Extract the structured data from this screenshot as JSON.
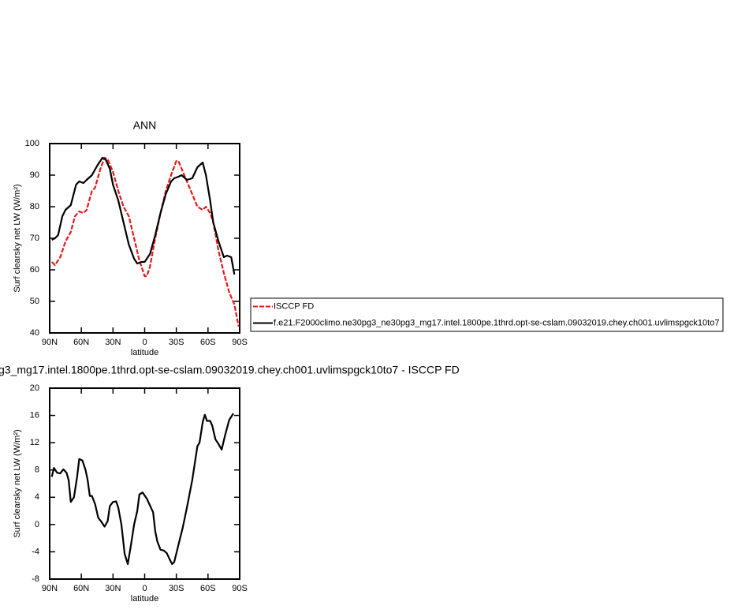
{
  "chart_data": [
    {
      "type": "line",
      "title": "ANN",
      "x_label": "latitude",
      "y_label": "Surf clearsky net LW (W/m²)",
      "xlim": [
        90,
        -90
      ],
      "xticks": [
        {
          "value": 90,
          "label": "90N"
        },
        {
          "value": 60,
          "label": "60N"
        },
        {
          "value": 30,
          "label": "30N"
        },
        0,
        {
          "value": -30,
          "label": "30S"
        },
        {
          "value": -60,
          "label": "60S"
        },
        {
          "value": -90,
          "label": "90S"
        }
      ],
      "ylim": [
        40,
        100
      ],
      "yticks": [
        40,
        50,
        60,
        70,
        80,
        90,
        100
      ],
      "legend": "right",
      "series": [
        {
          "name": "ISCCP FD",
          "color": "#e41a1c",
          "dashed": true,
          "x": [
            88,
            85,
            80,
            75,
            70,
            66,
            62,
            58,
            55,
            50,
            47,
            42,
            38,
            35,
            30,
            25,
            20,
            15,
            10,
            5,
            0,
            -2,
            -5,
            -10,
            -15,
            -20,
            -25,
            -30,
            -32,
            -35,
            -40,
            -45,
            -50,
            -55,
            -58,
            -62,
            -65,
            -70,
            -75,
            -80,
            -85,
            -89
          ],
          "values": [
            62.5,
            61.5,
            64,
            69,
            72,
            77,
            78.5,
            78,
            79,
            85,
            86,
            92,
            95.5,
            95,
            91,
            85,
            80,
            77,
            70,
            63,
            58,
            58,
            61,
            70,
            78,
            85,
            90,
            94.5,
            94.5,
            92,
            88,
            84,
            80,
            79,
            80,
            78,
            75,
            66,
            59,
            53,
            49,
            42
          ]
        },
        {
          "name": "f.e21.F2000climo.ne30pg3_ne30pg3_mg17.intel.1800pe.1thrd.opt-se-cslam.09032019.chey.ch001.uvlimspgck10to7",
          "color": "#000000",
          "dashed": false,
          "x": [
            88,
            85,
            82,
            78,
            75,
            70,
            65,
            62,
            58,
            55,
            50,
            45,
            40,
            37,
            33,
            30,
            25,
            20,
            15,
            10,
            7,
            3,
            0,
            -5,
            -10,
            -15,
            -20,
            -25,
            -28,
            -32,
            -35,
            -40,
            -45,
            -50,
            -55,
            -58,
            -62,
            -65,
            -70,
            -75,
            -78,
            -82,
            -85
          ],
          "values": [
            69.5,
            70,
            71,
            77,
            79,
            80.5,
            87,
            88,
            87.5,
            88.5,
            90,
            93,
            95.5,
            95,
            92,
            87,
            82,
            75,
            68,
            63.5,
            62,
            62.5,
            62.5,
            65,
            71,
            78,
            84,
            88,
            89,
            89.5,
            90,
            88.5,
            89,
            92.5,
            94,
            90,
            82,
            75,
            69,
            64,
            64.5,
            64,
            58.5
          ]
        }
      ]
    },
    {
      "type": "line",
      "title": "g3_mg17.intel.1800pe.1thrd.opt-se-cslam.09032019.chey.ch001.uvlimspgck10to7 - ISCCP FD",
      "x_label": "latitude",
      "y_label": "Surf clearsky net LW (W/m²)",
      "xlim": [
        90,
        -90
      ],
      "xticks": [
        {
          "value": 90,
          "label": "90N"
        },
        {
          "value": 60,
          "label": "60N"
        },
        {
          "value": 30,
          "label": "30N"
        },
        0,
        {
          "value": -30,
          "label": "30S"
        },
        {
          "value": -60,
          "label": "60S"
        },
        {
          "value": -90,
          "label": "90S"
        }
      ],
      "ylim": [
        -8,
        20
      ],
      "yticks": [
        -8,
        -4,
        0,
        4,
        8,
        12,
        16,
        20
      ],
      "series": [
        {
          "color": "#000000",
          "dashed": false,
          "x": [
            88,
            86,
            83,
            80,
            77,
            74,
            72,
            70,
            67,
            64,
            62,
            59,
            56,
            54,
            52,
            50,
            47,
            44,
            41,
            38,
            35,
            33,
            30,
            27,
            25,
            22,
            19,
            16,
            13,
            10,
            7,
            5,
            2,
            -2,
            -5,
            -8,
            -10,
            -12,
            -15,
            -18,
            -21,
            -24,
            -26,
            -28,
            -32,
            -36,
            -40,
            -45,
            -50,
            -52,
            -55,
            -57,
            -59,
            -62,
            -64,
            -67,
            -70,
            -73,
            -76,
            -80,
            -84
          ],
          "values": [
            7,
            8.3,
            7.6,
            7.5,
            8.1,
            7.6,
            6.5,
            3.3,
            4,
            7,
            9.6,
            9.4,
            8,
            6.5,
            4.2,
            4.2,
            3,
            1,
            0.4,
            -0.3,
            0.5,
            2.7,
            3.3,
            3.4,
            2.5,
            0,
            -4.3,
            -5.8,
            -3,
            0,
            2,
            4.4,
            4.7,
            3.8,
            2.8,
            1.8,
            -1,
            -2.5,
            -3.7,
            -3.8,
            -4.2,
            -5.2,
            -5.8,
            -5.5,
            -3,
            -0.5,
            2.5,
            6.5,
            11.5,
            12,
            15,
            16.1,
            15.2,
            15.2,
            14.5,
            12.5,
            11.8,
            11,
            13,
            15.3,
            16.3
          ]
        }
      ]
    }
  ]
}
